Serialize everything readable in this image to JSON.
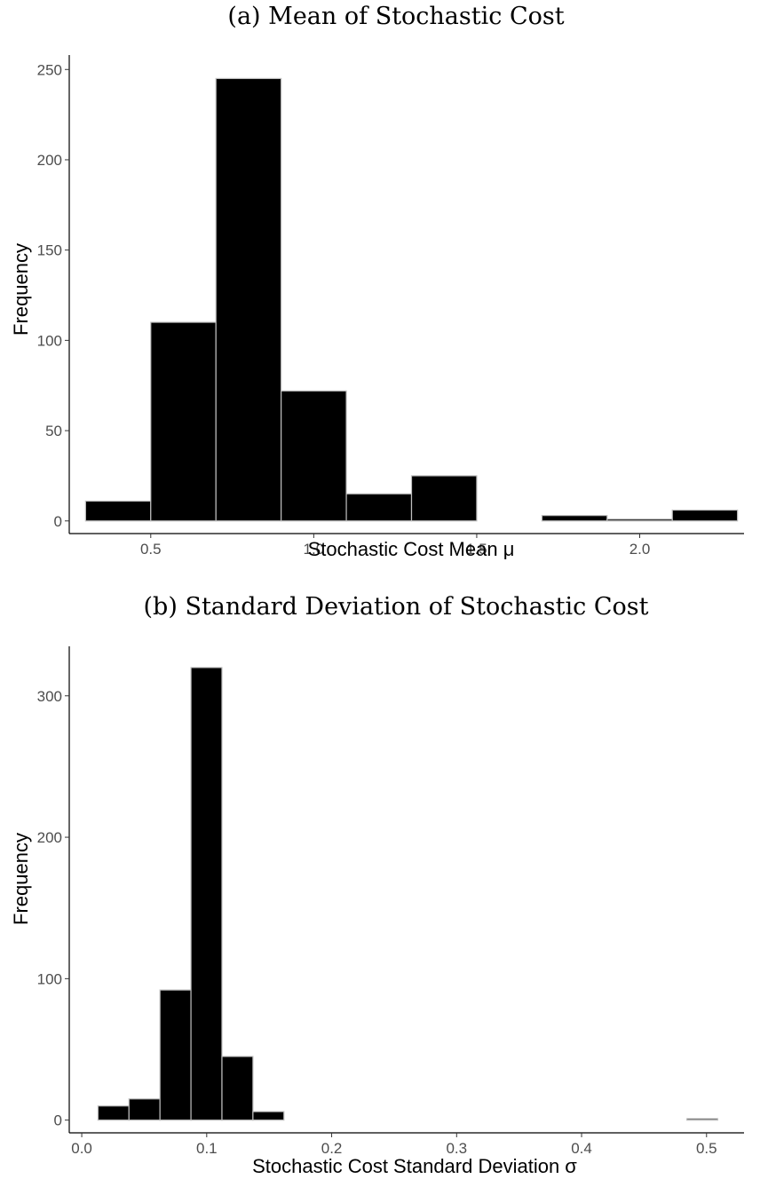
{
  "chart_data": [
    {
      "type": "bar",
      "title": "(a) Mean of Stochastic Cost",
      "xlabel": "Stochastic Cost Mean μ",
      "ylabel": "Frequency",
      "bin_edges": [
        0.3,
        0.5,
        0.7,
        0.9,
        1.1,
        1.3,
        1.5,
        1.7,
        1.9,
        2.1,
        2.3
      ],
      "values": [
        11,
        110,
        245,
        72,
        15,
        25,
        0,
        3,
        1,
        6
      ],
      "xlim": [
        0.25,
        2.32
      ],
      "ylim": [
        -7,
        258
      ],
      "x_ticks": [
        0.5,
        1.0,
        1.5,
        2.0
      ],
      "x_tick_labels": [
        "0.5",
        "1.0",
        "1.5",
        "2.0"
      ],
      "y_ticks": [
        0,
        50,
        100,
        150,
        200,
        250
      ],
      "y_tick_labels": [
        "0",
        "50",
        "100",
        "150",
        "200",
        "250"
      ],
      "grid": false
    },
    {
      "type": "bar",
      "title": "(b) Standard Deviation of Stochastic Cost",
      "xlabel": "Stochastic Cost Standard Deviation σ",
      "ylabel": "Frequency",
      "bin_edges": [
        0.013,
        0.0378,
        0.0626,
        0.0874,
        0.1122,
        0.137,
        0.1618,
        0.1866,
        0.2114,
        0.2362,
        0.261,
        0.2858,
        0.3106,
        0.3354,
        0.3602,
        0.385,
        0.4098,
        0.4346,
        0.4594,
        0.4842,
        0.509
      ],
      "values": [
        10,
        15,
        92,
        320,
        45,
        6,
        0,
        0,
        0,
        0,
        0,
        0,
        0,
        0,
        0,
        0,
        0,
        0,
        0,
        1
      ],
      "xlim": [
        -0.01,
        0.53
      ],
      "ylim": [
        -9,
        335
      ],
      "x_ticks": [
        0.0,
        0.1,
        0.2,
        0.3,
        0.4,
        0.5
      ],
      "x_tick_labels": [
        "0.0",
        "0.1",
        "0.2",
        "0.3",
        "0.4",
        "0.5"
      ],
      "y_ticks": [
        0,
        100,
        200,
        300
      ],
      "y_tick_labels": [
        "0",
        "100",
        "200",
        "300"
      ],
      "grid": false
    }
  ]
}
